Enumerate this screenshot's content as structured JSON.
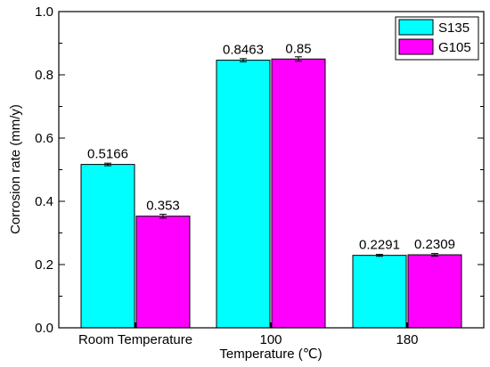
{
  "chart_data": {
    "type": "bar",
    "title": "",
    "xlabel": "Temperature (℃)",
    "ylabel": "Corrosion rate (mm/y)",
    "ylim": [
      0.0,
      1.0
    ],
    "yticks": [
      "0.0",
      "0.2",
      "0.4",
      "0.6",
      "0.8",
      "1.0"
    ],
    "categories": [
      "Room Temperature",
      "100",
      "180"
    ],
    "series": [
      {
        "name": "S135",
        "color": "#00ffff",
        "values": [
          0.5166,
          0.8463,
          0.2291
        ],
        "labels": [
          "0.5166",
          "0.8463",
          "0.2291"
        ],
        "errors": [
          0.004,
          0.005,
          0.003
        ]
      },
      {
        "name": "G105",
        "color": "#ff00ff",
        "values": [
          0.353,
          0.85,
          0.2309
        ],
        "labels": [
          "0.353",
          "0.85",
          "0.2309"
        ],
        "errors": [
          0.006,
          0.007,
          0.004
        ]
      }
    ],
    "legend": "top-right",
    "grid": false
  }
}
